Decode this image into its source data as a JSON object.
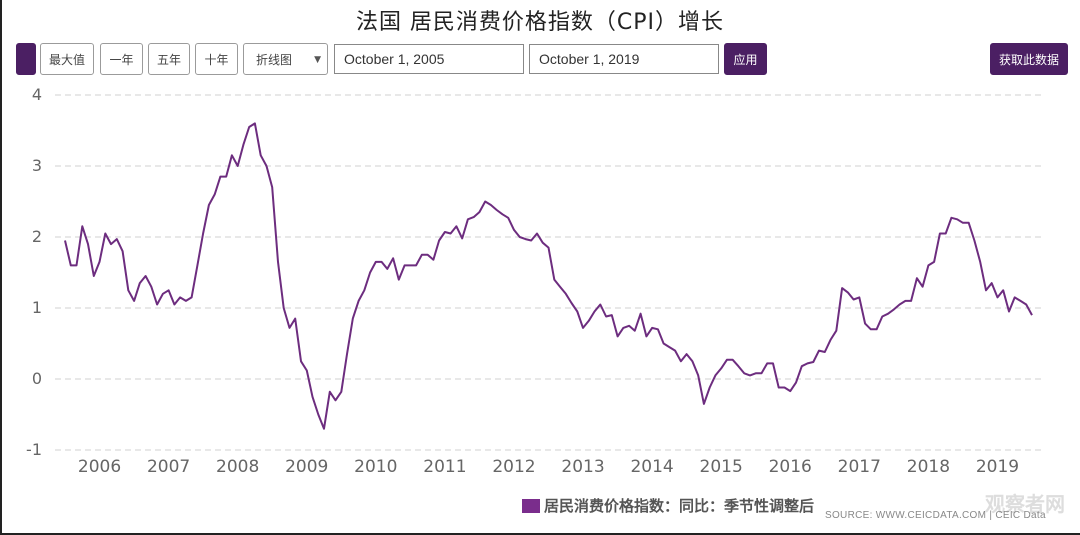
{
  "title": "法国 居民消费价格指数（CPI）增长",
  "toolbar": {
    "menu_button": "",
    "range_buttons": [
      "最大值",
      "一年",
      "五年",
      "十年"
    ],
    "chart_type_select": "折线图",
    "start_date": "October 1, 2005",
    "end_date": "October 1, 2019",
    "apply_label": "应用",
    "get_data_label": "获取此数据"
  },
  "legend": {
    "label": "居民消费价格指数：同比：季节性调整后",
    "color": "#7a2d8c"
  },
  "source": "SOURCE: WWW.CEICDATA.COM | CEIC Data",
  "watermark": "观察者网",
  "colors": {
    "line": "#6d2d7f",
    "accent": "#4b1f63",
    "grid": "#d0d0d0"
  },
  "chart_data": {
    "type": "line",
    "title": "法国 居民消费价格指数（CPI）增长",
    "xlabel": "",
    "ylabel": "",
    "ylim": [
      -1,
      4
    ],
    "yticks": [
      4,
      3,
      2,
      1,
      0,
      -1
    ],
    "xticks": [
      "2006",
      "2007",
      "2008",
      "2009",
      "2010",
      "2011",
      "2012",
      "2013",
      "2014",
      "2015",
      "2016",
      "2017",
      "2018",
      "2019"
    ],
    "grid": "horizontal dashed",
    "legend_position": "bottom",
    "x_start": "2005-10",
    "x_end": "2019-10",
    "frequency": "monthly",
    "series": [
      {
        "name": "居民消费价格指数：同比：季节性调整后",
        "values": [
          1.95,
          1.6,
          1.6,
          2.15,
          1.9,
          1.45,
          1.65,
          2.05,
          1.9,
          1.97,
          1.8,
          1.25,
          1.1,
          1.35,
          1.45,
          1.3,
          1.05,
          1.2,
          1.25,
          1.05,
          1.15,
          1.1,
          1.15,
          1.6,
          2.05,
          2.45,
          2.6,
          2.85,
          2.85,
          3.15,
          3.0,
          3.3,
          3.55,
          3.6,
          3.15,
          3.0,
          2.7,
          1.65,
          1.0,
          0.72,
          0.85,
          0.25,
          0.12,
          -0.25,
          -0.5,
          -0.7,
          -0.18,
          -0.3,
          -0.18,
          0.35,
          0.85,
          1.1,
          1.25,
          1.5,
          1.65,
          1.65,
          1.55,
          1.7,
          1.4,
          1.6,
          1.6,
          1.6,
          1.75,
          1.75,
          1.68,
          1.95,
          2.07,
          2.05,
          2.15,
          1.98,
          2.25,
          2.28,
          2.35,
          2.5,
          2.45,
          2.38,
          2.32,
          2.27,
          2.1,
          2.0,
          1.97,
          1.95,
          2.05,
          1.92,
          1.85,
          1.4,
          1.3,
          1.2,
          1.07,
          0.95,
          0.72,
          0.82,
          0.95,
          1.05,
          0.88,
          0.9,
          0.6,
          0.72,
          0.75,
          0.68,
          0.92,
          0.6,
          0.72,
          0.7,
          0.5,
          0.45,
          0.4,
          0.25,
          0.35,
          0.25,
          0.05,
          -0.35,
          -0.12,
          0.05,
          0.15,
          0.27,
          0.27,
          0.18,
          0.08,
          0.05,
          0.08,
          0.08,
          0.22,
          0.22,
          -0.12,
          -0.12,
          -0.17,
          -0.05,
          0.18,
          0.22,
          0.24,
          0.4,
          0.38,
          0.55,
          0.68,
          1.28,
          1.22,
          1.12,
          1.15,
          0.78,
          0.7,
          0.7,
          0.88,
          0.92,
          0.98,
          1.05,
          1.1,
          1.1,
          1.42,
          1.3,
          1.6,
          1.65,
          2.05,
          2.05,
          2.27,
          2.25,
          2.2,
          2.2,
          1.95,
          1.65,
          1.25,
          1.35,
          1.15,
          1.25,
          0.95,
          1.15,
          1.1,
          1.05,
          0.9
        ]
      }
    ]
  }
}
